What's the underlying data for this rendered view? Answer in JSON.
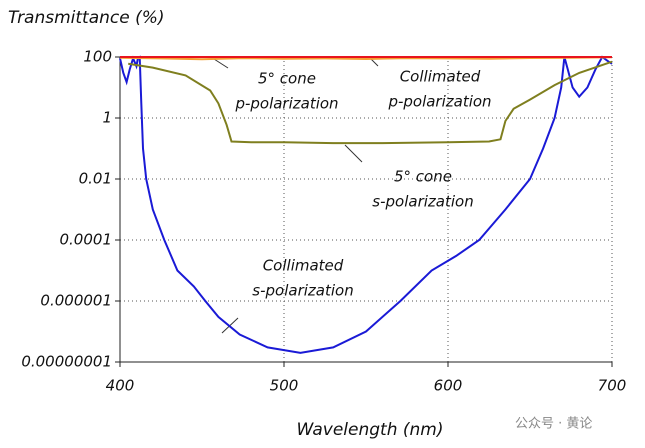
{
  "chart_data": {
    "type": "line",
    "title": "Transmittance (%)",
    "x_label": "Wavelength (nm)",
    "watermark": "公众号 · 黄论",
    "log_y": true,
    "grid": true,
    "xlim": [
      400,
      700
    ],
    "xticks": [
      400,
      500,
      600,
      700
    ],
    "ylim": [
      1e-08,
      100
    ],
    "yticks": [
      100,
      1,
      0.01,
      0.0001,
      1e-06,
      {
        "value": 1e-08,
        "label": "0.00000001"
      }
    ],
    "series": [
      {
        "label": [
          "Collimated",
          "s-polarization"
        ],
        "color": "#1a1ad6",
        "x": [
          400,
          402,
          404,
          406,
          408,
          410,
          411,
          412,
          413,
          414,
          416,
          420,
          427,
          435,
          445,
          452,
          460,
          473,
          490,
          510,
          530,
          550,
          571,
          590,
          605,
          619,
          635,
          650,
          658,
          665,
          669,
          671,
          673,
          676,
          680,
          685,
          690,
          694,
          698,
          700
        ],
        "values": [
          90,
          30,
          15,
          40,
          90,
          50,
          95,
          100,
          3,
          0.1,
          0.01,
          0.001,
          0.0001,
          1e-05,
          3e-06,
          1e-06,
          3e-07,
          8e-08,
          3e-08,
          2e-08,
          3e-08,
          1e-07,
          1e-06,
          1e-05,
          3e-05,
          0.0001,
          0.001,
          0.01,
          0.1,
          1,
          10,
          100,
          40,
          10,
          5,
          10,
          40,
          100,
          70,
          60
        ]
      },
      {
        "label": [
          "5° cone",
          "s-polarization"
        ],
        "color": "#7f7f1f",
        "x": [
          405,
          420,
          440,
          455,
          460,
          465,
          468,
          480,
          500,
          530,
          560,
          600,
          625,
          632,
          635,
          640,
          650,
          665,
          680,
          700
        ],
        "values": [
          60,
          45,
          25,
          8,
          3,
          0.6,
          0.17,
          0.16,
          0.16,
          0.15,
          0.15,
          0.16,
          0.17,
          0.2,
          0.8,
          2,
          4,
          12,
          30,
          70
        ]
      },
      {
        "label": [
          "5° cone",
          "p-polarization"
        ],
        "color": "#f5a030",
        "x": [
          400,
          425,
          450,
          475,
          500,
          525,
          550,
          575,
          600,
          625,
          650,
          675,
          700
        ],
        "values": [
          95,
          90,
          85,
          92,
          88,
          90,
          86,
          92,
          90,
          88,
          93,
          95,
          98
        ]
      },
      {
        "label": [
          "Collimated",
          "p-polarization"
        ],
        "color": "#e8141e",
        "x": [
          400,
          450,
          500,
          550,
          600,
          650,
          700
        ],
        "values": [
          100,
          100,
          100,
          100,
          100,
          100,
          100
        ]
      }
    ]
  }
}
